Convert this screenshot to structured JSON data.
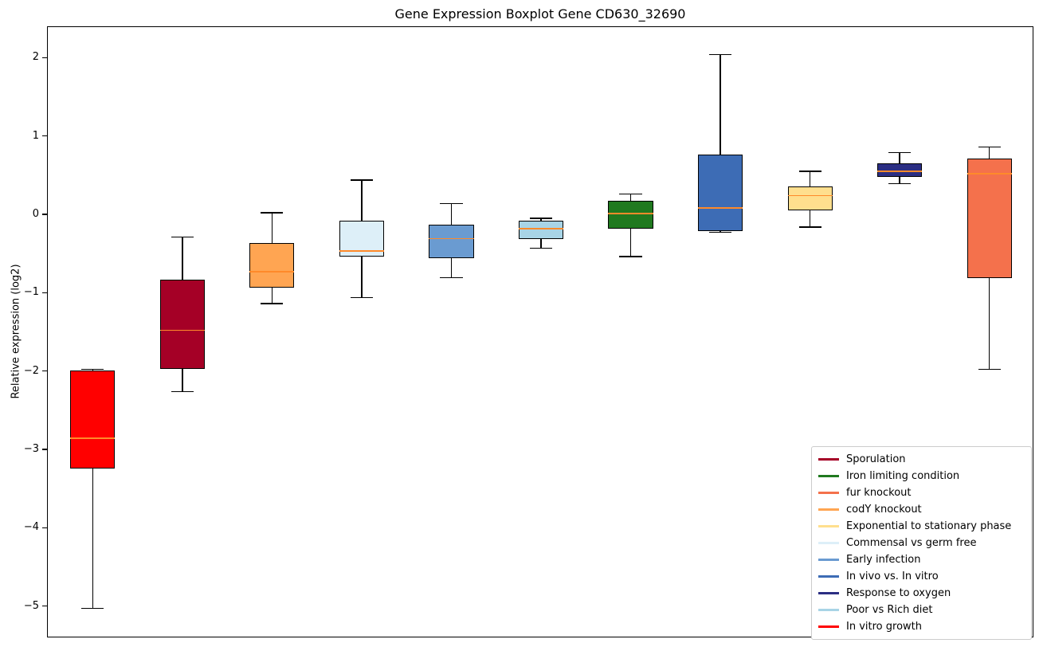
{
  "title": "Gene Expression Boxplot Gene CD630_32690",
  "ylabel": "Relative expression (log2)",
  "chart_data": {
    "type": "boxplot",
    "title": "Gene Expression Boxplot Gene CD630_32690",
    "xlabel": "",
    "ylabel": "Relative expression (log2)",
    "ylim": [
      -5.4,
      2.4
    ],
    "yticks": [
      2,
      1,
      0,
      -1,
      -2,
      -3,
      -4,
      -5
    ],
    "grid": false,
    "median_color": "#ff8a2a",
    "boxes": [
      {
        "label": "In vitro growth",
        "color": "#ff0000",
        "whislo": -5.02,
        "q1": -3.23,
        "med": -2.85,
        "q3": -1.98,
        "whishi": -1.97
      },
      {
        "label": "Sporulation",
        "color": "#a50026",
        "whislo": -2.25,
        "q1": -1.96,
        "med": -1.47,
        "q3": -0.82,
        "whishi": -0.28
      },
      {
        "label": "codY knockout",
        "color": "#ffa552",
        "whislo": -1.13,
        "q1": -0.93,
        "med": -0.72,
        "q3": -0.36,
        "whishi": 0.03
      },
      {
        "label": "Commensal vs germ free",
        "color": "#ddeff8",
        "whislo": -1.05,
        "q1": -0.53,
        "med": -0.46,
        "q3": -0.07,
        "whishi": 0.45
      },
      {
        "label": "Early infection",
        "color": "#6a9bd1",
        "whislo": -0.8,
        "q1": -0.55,
        "med": -0.3,
        "q3": -0.12,
        "whishi": 0.15
      },
      {
        "label": "Poor vs Rich diet",
        "color": "#a8d4e6",
        "whislo": -0.42,
        "q1": -0.31,
        "med": -0.17,
        "q3": -0.07,
        "whishi": -0.04
      },
      {
        "label": "Iron limiting condition",
        "color": "#20791f",
        "whislo": -0.53,
        "q1": -0.17,
        "med": 0.02,
        "q3": 0.18,
        "whishi": 0.27
      },
      {
        "label": "In vivo vs. In vitro",
        "color": "#3d6cb5",
        "whislo": -0.22,
        "q1": -0.2,
        "med": 0.09,
        "q3": 0.77,
        "whishi": 2.05
      },
      {
        "label": "Exponential to stationary phase",
        "color": "#ffdf8e",
        "whislo": -0.15,
        "q1": 0.06,
        "med": 0.25,
        "q3": 0.37,
        "whishi": 0.56
      },
      {
        "label": "Response to oxygen",
        "color": "#2b2e83",
        "whislo": 0.4,
        "q1": 0.49,
        "med": 0.56,
        "q3": 0.66,
        "whishi": 0.8
      },
      {
        "label": "fur knockout",
        "color": "#f4714c",
        "whislo": -1.97,
        "q1": -0.8,
        "med": 0.53,
        "q3": 0.72,
        "whishi": 0.87
      }
    ],
    "legend": {
      "position": "lower right",
      "entries": [
        {
          "label": "Sporulation",
          "color": "#a50026"
        },
        {
          "label": "Iron limiting condition",
          "color": "#20791f"
        },
        {
          "label": "fur knockout",
          "color": "#f4714c"
        },
        {
          "label": "codY knockout",
          "color": "#ffa552"
        },
        {
          "label": "Exponential to stationary phase",
          "color": "#ffdf8e"
        },
        {
          "label": "Commensal vs germ free",
          "color": "#ddeff8"
        },
        {
          "label": "Early infection",
          "color": "#6a9bd1"
        },
        {
          "label": "In vivo vs. In vitro",
          "color": "#3d6cb5"
        },
        {
          "label": "Response to oxygen",
          "color": "#2b2e83"
        },
        {
          "label": "Poor vs Rich diet",
          "color": "#a8d4e6"
        },
        {
          "label": "In vitro growth",
          "color": "#ff0000"
        }
      ]
    }
  }
}
